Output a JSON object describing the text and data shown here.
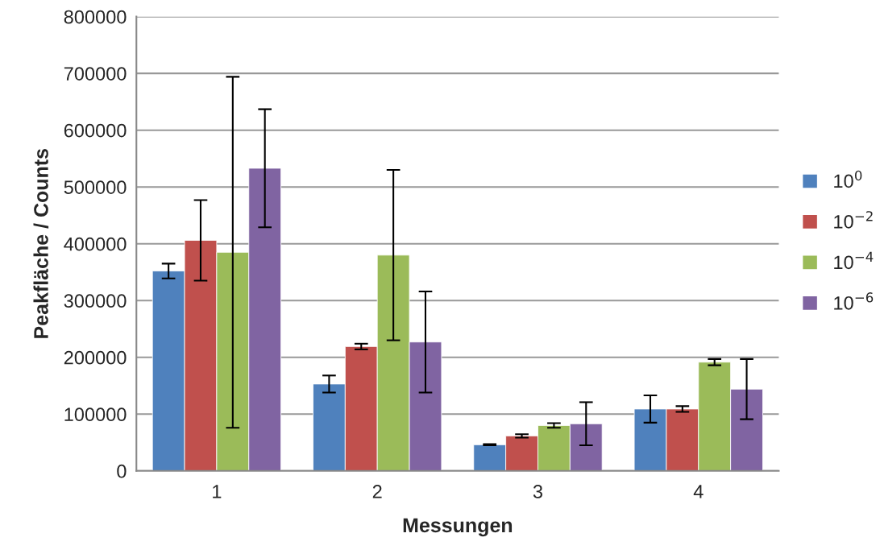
{
  "chart_data": {
    "type": "bar",
    "xlabel": "Messungen",
    "ylabel": "Peakfläche / Counts",
    "categories": [
      "1",
      "2",
      "3",
      "4"
    ],
    "series": [
      {
        "name": "10$^{0}$",
        "color": "#4f81bd",
        "values": [
          352000,
          153000,
          46000,
          109000
        ],
        "errors": [
          13000,
          15000,
          1000,
          24000
        ]
      },
      {
        "name": "10$^{−2}$",
        "color": "#c0504d",
        "values": [
          406000,
          219000,
          61600,
          109000
        ],
        "errors": [
          71000,
          5000,
          3000,
          5000
        ]
      },
      {
        "name": "10$^{−4}$",
        "color": "#9bbb59",
        "values": [
          385000,
          380000,
          80000,
          191500
        ],
        "errors": [
          309000,
          150000,
          4000,
          5500
        ]
      },
      {
        "name": "10$^{−6}$",
        "color": "#8064a2",
        "values": [
          533000,
          227000,
          83000,
          144000
        ],
        "errors": [
          104000,
          89000,
          38000,
          53000
        ]
      }
    ],
    "ylim": [
      0,
      800000
    ],
    "yticks": [
      0,
      100000,
      200000,
      300000,
      400000,
      500000,
      600000,
      700000,
      800000
    ],
    "grid": "y",
    "legend": "right"
  }
}
